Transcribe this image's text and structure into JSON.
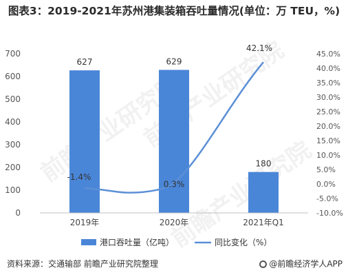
{
  "chart_data": {
    "type": "bar",
    "title": "图表3：2019-2021年苏州港集装箱吞吐量情况(单位：万 TEU，%)",
    "categories": [
      "2019年",
      "2020年",
      "2021年Q1"
    ],
    "series": [
      {
        "name": "港口吞吐量（亿吨）",
        "type": "bar",
        "axis": "left",
        "values": [
          627,
          629,
          180
        ],
        "labels": [
          "627",
          "629",
          "180"
        ]
      },
      {
        "name": "同比变化（%）",
        "type": "line",
        "axis": "right",
        "values": [
          -1.4,
          0.3,
          42.1
        ],
        "labels": [
          "-1.4%",
          "0.3%",
          "42.1%"
        ]
      }
    ],
    "ylim_left": [
      0,
      700
    ],
    "yticks_left": [
      "700",
      "600",
      "500",
      "400",
      "300",
      "200",
      "100",
      "0"
    ],
    "ylim_right": [
      -10,
      45
    ],
    "yticks_right": [
      "45.0%",
      "40.0%",
      "35.0%",
      "30.0%",
      "25.0%",
      "20.0%",
      "15.0%",
      "10.0%",
      "5.0%",
      "0.0%",
      "-5.0%",
      "-10.0%"
    ],
    "legend_position": "bottom",
    "grid": false,
    "colors": {
      "bar": "#4a86d8",
      "line": "#5b8fd6"
    }
  },
  "footer": {
    "source": "资料来源：交通输部 前瞻产业研究院整理"
  },
  "brand": {
    "name": "@前瞻经济学人APP"
  },
  "watermark": {
    "text": "前瞻产业研究院"
  }
}
